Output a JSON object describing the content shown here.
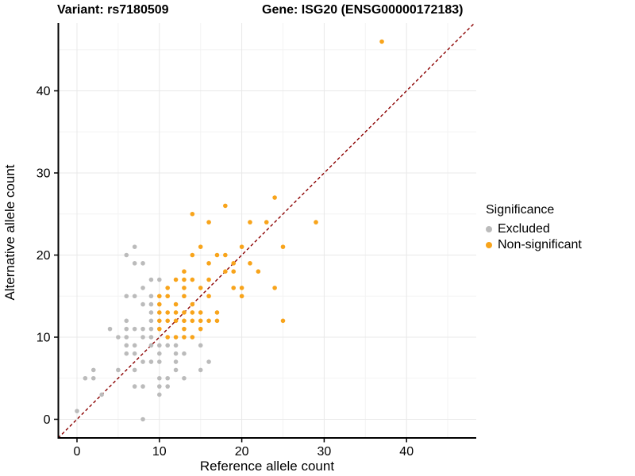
{
  "titles": {
    "left": "Variant: rs7180509",
    "right": "Gene: ISG20 (ENSG00000172183)"
  },
  "axes": {
    "x": {
      "label": "Reference allele count",
      "ticks": [
        0,
        10,
        20,
        30,
        40
      ],
      "minor_ticks": [
        5,
        15,
        25,
        35,
        45
      ],
      "range": [
        -2.3,
        48.5
      ]
    },
    "y": {
      "label": "Alternative allele count",
      "ticks": [
        0,
        10,
        20,
        30,
        40
      ],
      "minor_ticks": [
        5,
        15,
        25,
        35,
        45
      ],
      "range": [
        -2.3,
        48.2
      ]
    }
  },
  "legend": {
    "title": "Significance",
    "items": [
      {
        "label": "Excluded",
        "color": "#BBBBBB"
      },
      {
        "label": "Non-significant",
        "color": "#F8A41B"
      }
    ]
  },
  "style": {
    "background": "#FFFFFF",
    "major_grid_color": "#E8E8E8",
    "minor_grid_color": "#F3F3F3",
    "axis_line_color": "#000000",
    "reference_line_color": "#8B0000",
    "point_radius": 2.8
  },
  "chart_data": {
    "type": "scatter",
    "title": "Variant: rs7180509 / Gene: ISG20 (ENSG00000172183)",
    "xlabel": "Reference allele count",
    "ylabel": "Alternative allele count",
    "xlim": [
      -2.3,
      48.5
    ],
    "ylim": [
      -2.3,
      48.2
    ],
    "grid": true,
    "legend_position": "right",
    "reference_line": {
      "type": "identity",
      "slope": 1,
      "intercept": 0,
      "style": "dashed",
      "color": "#8B0000"
    },
    "series": [
      {
        "name": "Excluded",
        "color": "#BBBBBB",
        "points": [
          [
            0,
            1
          ],
          [
            1,
            5
          ],
          [
            2,
            5
          ],
          [
            2,
            6
          ],
          [
            3,
            3
          ],
          [
            4,
            11
          ],
          [
            5,
            6
          ],
          [
            5,
            10
          ],
          [
            6,
            8
          ],
          [
            6,
            9
          ],
          [
            6,
            10
          ],
          [
            6,
            11
          ],
          [
            6,
            12
          ],
          [
            6,
            15
          ],
          [
            6,
            20
          ],
          [
            7,
            4
          ],
          [
            7,
            6
          ],
          [
            7,
            8
          ],
          [
            7,
            9
          ],
          [
            7,
            11
          ],
          [
            7,
            15
          ],
          [
            7,
            19
          ],
          [
            7,
            21
          ],
          [
            8,
            0
          ],
          [
            8,
            4
          ],
          [
            8,
            7
          ],
          [
            8,
            10
          ],
          [
            8,
            11
          ],
          [
            8,
            14
          ],
          [
            8,
            16
          ],
          [
            8,
            19
          ],
          [
            9,
            7
          ],
          [
            9,
            9
          ],
          [
            9,
            10
          ],
          [
            9,
            11
          ],
          [
            9,
            12
          ],
          [
            9,
            13
          ],
          [
            9,
            14
          ],
          [
            9,
            15
          ],
          [
            9,
            17
          ],
          [
            10,
            3
          ],
          [
            10,
            4
          ],
          [
            10,
            5
          ],
          [
            10,
            7
          ],
          [
            10,
            8
          ],
          [
            10,
            9
          ],
          [
            10,
            17
          ],
          [
            11,
            4
          ],
          [
            11,
            5
          ],
          [
            11,
            9
          ],
          [
            12,
            6
          ],
          [
            12,
            7
          ],
          [
            12,
            8
          ],
          [
            12,
            9
          ],
          [
            13,
            5
          ],
          [
            13,
            8
          ],
          [
            15,
            6
          ],
          [
            15,
            9
          ],
          [
            16,
            7
          ]
        ]
      },
      {
        "name": "Non-significant",
        "color": "#F8A41B",
        "points": [
          [
            10,
            11
          ],
          [
            10,
            12
          ],
          [
            10,
            13
          ],
          [
            10,
            14
          ],
          [
            10,
            15
          ],
          [
            11,
            10
          ],
          [
            11,
            12
          ],
          [
            11,
            13
          ],
          [
            11,
            15
          ],
          [
            11,
            16
          ],
          [
            12,
            10
          ],
          [
            12,
            12
          ],
          [
            12,
            13
          ],
          [
            12,
            14
          ],
          [
            12,
            17
          ],
          [
            13,
            10
          ],
          [
            13,
            11
          ],
          [
            13,
            12
          ],
          [
            13,
            13
          ],
          [
            13,
            15
          ],
          [
            13,
            16
          ],
          [
            13,
            17
          ],
          [
            13,
            18
          ],
          [
            14,
            10
          ],
          [
            14,
            12
          ],
          [
            14,
            13
          ],
          [
            14,
            14
          ],
          [
            14,
            17
          ],
          [
            14,
            20
          ],
          [
            14,
            25
          ],
          [
            15,
            11
          ],
          [
            15,
            12
          ],
          [
            15,
            13
          ],
          [
            15,
            16
          ],
          [
            15,
            21
          ],
          [
            16,
            12
          ],
          [
            16,
            15
          ],
          [
            16,
            17
          ],
          [
            16,
            19
          ],
          [
            16,
            24
          ],
          [
            17,
            12
          ],
          [
            17,
            13
          ],
          [
            17,
            20
          ],
          [
            18,
            18
          ],
          [
            18,
            20
          ],
          [
            18,
            26
          ],
          [
            19,
            16
          ],
          [
            19,
            18
          ],
          [
            19,
            19
          ],
          [
            20,
            15
          ],
          [
            20,
            16
          ],
          [
            20,
            21
          ],
          [
            21,
            19
          ],
          [
            21,
            24
          ],
          [
            22,
            18
          ],
          [
            23,
            24
          ],
          [
            24,
            16
          ],
          [
            24,
            27
          ],
          [
            25,
            12
          ],
          [
            25,
            21
          ],
          [
            29,
            24
          ],
          [
            37,
            46
          ]
        ]
      }
    ]
  }
}
